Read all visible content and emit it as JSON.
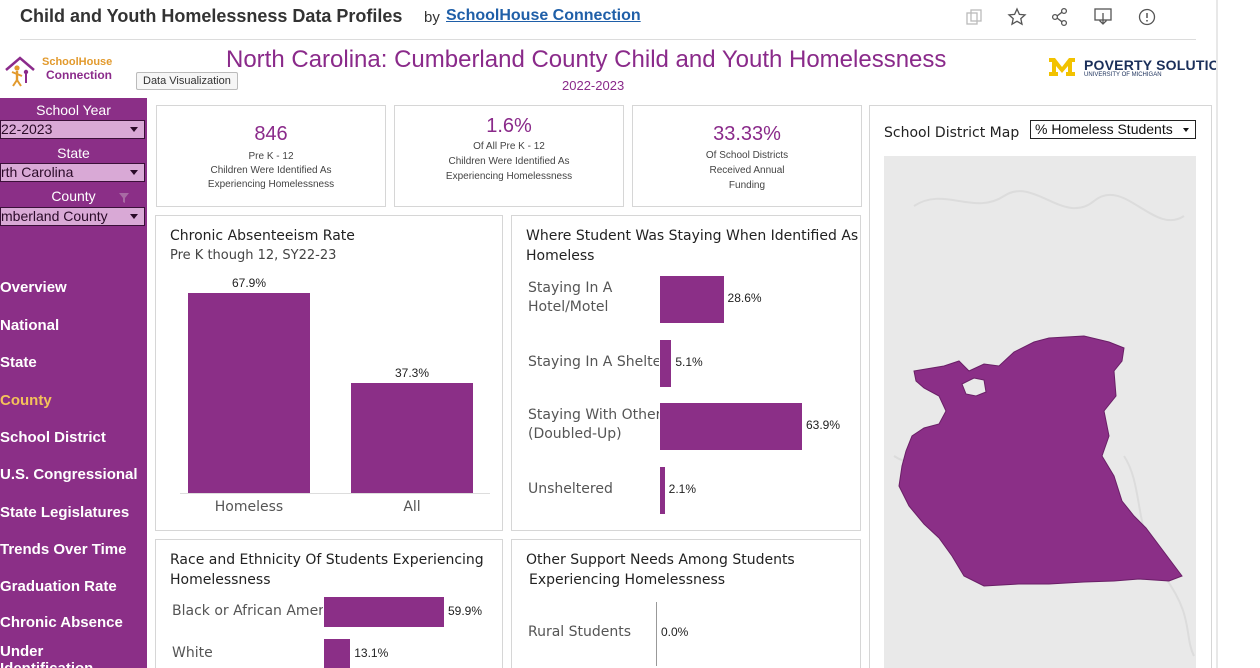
{
  "header": {
    "title": "Child and Youth Homelessness Data Profiles",
    "by": "by",
    "link": "SchoolHouse Connection"
  },
  "logos": {
    "schoolhouse_line1": "SchoolHouse",
    "schoolhouse_line2": "Connection",
    "poverty": "POVERTY SOLUTIONS",
    "poverty_sub": "UNIVERSITY OF MICHIGAN"
  },
  "tooltip": "Data Visualization",
  "dashboard": {
    "title": "North Carolina: Cumberland County Child and Youth Homelessness",
    "subtitle": "2022-2023"
  },
  "filters": {
    "school_year_label": "School Year",
    "school_year_value": "22-2023",
    "state_label": "State",
    "state_value": "rth Carolina",
    "county_label": "County",
    "county_value": "mberland County"
  },
  "nav": [
    {
      "label": "Overview",
      "active": false
    },
    {
      "label": "National",
      "active": false
    },
    {
      "label": "State",
      "active": false
    },
    {
      "label": "County",
      "active": true
    },
    {
      "label": "School District",
      "active": false
    },
    {
      "label": "U.S. Congressional",
      "active": false
    },
    {
      "label": "State Legislatures",
      "active": false
    },
    {
      "label": "Trends Over Time",
      "active": false
    },
    {
      "label": "Graduation Rate",
      "active": false
    },
    {
      "label": "Chronic Absence",
      "active": false
    },
    {
      "label": "Under",
      "active": false
    },
    {
      "label": "Identification",
      "active": false
    }
  ],
  "kpis": [
    {
      "value": "846",
      "lines": [
        "Pre K - 12",
        "Children Were Identified As",
        "Experiencing Homelessness"
      ]
    },
    {
      "value": "1.6%",
      "lines": [
        "Of All Pre K - 12",
        "Children Were Identified As",
        "Experiencing Homelessness"
      ]
    },
    {
      "value": "33.33%",
      "lines": [
        "Of School Districts",
        "Received Annual",
        "Funding"
      ]
    }
  ],
  "absenteeism": {
    "title": "Chronic Absenteeism Rate",
    "subtitle": "Pre K though 12,  SY22-23",
    "bars": [
      {
        "label": "Homeless",
        "value": 67.9,
        "text": "67.9%"
      },
      {
        "label": "All",
        "value": 37.3,
        "text": "37.3%"
      }
    ]
  },
  "staying": {
    "title_line1": "Where Student Was Staying When Identified As",
    "title_line2": "Homeless",
    "bars": [
      {
        "label": "Staying In A\nHotel/Motel",
        "value": 28.6,
        "text": "28.6%"
      },
      {
        "label": "Staying In A Shelter",
        "value": 5.1,
        "text": "5.1%"
      },
      {
        "label": "Staying With Others\n(Doubled-Up)",
        "value": 63.9,
        "text": "63.9%"
      },
      {
        "label": "Unsheltered",
        "value": 2.1,
        "text": "2.1%"
      }
    ]
  },
  "race": {
    "title_line1": "Race and Ethnicity Of Students Experiencing",
    "title_line2": "Homelessness",
    "bars": [
      {
        "label": "Black or African Americ",
        "value": 59.9,
        "text": "59.9%"
      },
      {
        "label": "White",
        "value": 13.1,
        "text": "13.1%"
      }
    ]
  },
  "support": {
    "title_line1": "Other Support Needs Among Students",
    "title_line2": "Experiencing Homelessness",
    "bars": [
      {
        "label": "Rural Students",
        "value": 0.0,
        "text": "0.0%"
      }
    ]
  },
  "map": {
    "title": "School District Map",
    "measure": "% Homeless Students"
  },
  "colors": {
    "brand_purple": "#8b2f87",
    "accent_gold": "#f4c25a",
    "link_blue": "#1f5fa8"
  }
}
